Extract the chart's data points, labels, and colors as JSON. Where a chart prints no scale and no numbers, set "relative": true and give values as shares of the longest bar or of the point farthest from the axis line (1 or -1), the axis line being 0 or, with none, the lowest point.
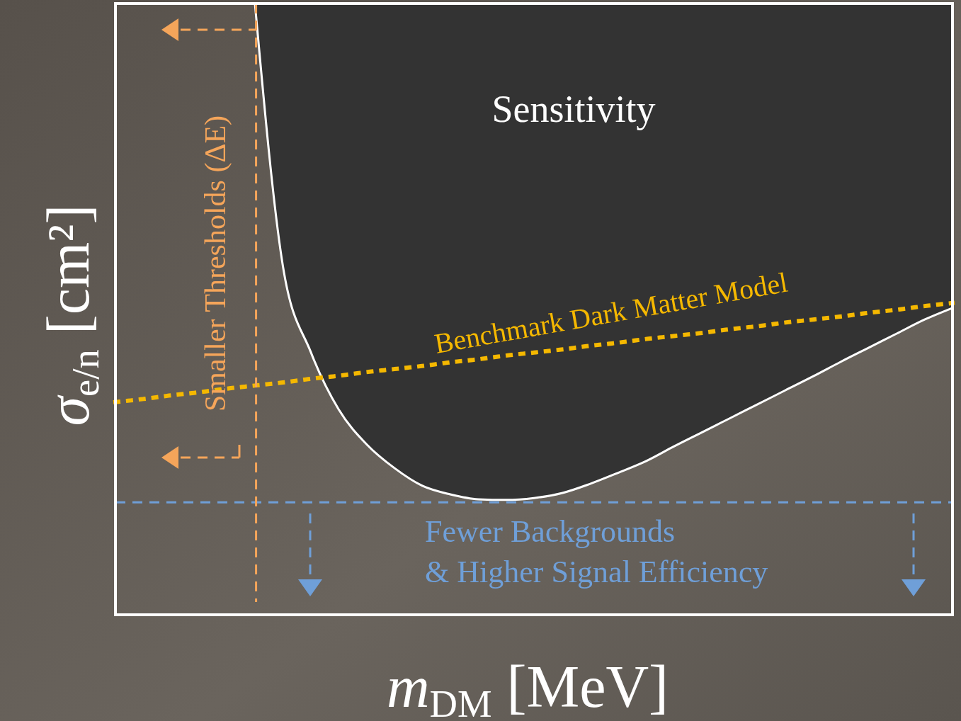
{
  "chart_data": {
    "type": "line",
    "relative": true,
    "xlabel": "m$_{DM}$ [MeV]",
    "ylabel": "σ$_{e/n}$ [cm²]",
    "categories": [
      null,
      null,
      null,
      null,
      null,
      null,
      null,
      null,
      null,
      null,
      null,
      null,
      null,
      null,
      null,
      null,
      null,
      null,
      null,
      null,
      null,
      null,
      null,
      null,
      null,
      null,
      null,
      null,
      null,
      null,
      null
    ],
    "series": [
      {
        "color": "#ffffff",
        "line_style": "solid",
        "values": [
          null,
          null,
          null,
          null,
          null,
          1.0,
          0.571,
          0.43,
          0.336,
          0.279,
          0.24,
          0.211,
          0.197,
          0.189,
          0.188,
          0.191,
          0.199,
          0.214,
          0.232,
          0.251,
          0.275,
          0.298,
          0.321,
          0.344,
          0.367,
          0.39,
          0.414,
          0.437,
          0.46,
          0.483,
          0.502
        ]
      },
      {
        "name": "Benchmark Dark Matter Model",
        "color": "#f5b800",
        "line_style": "dotted",
        "values": [
          0.348,
          0.353,
          0.359,
          0.364,
          0.37,
          0.375,
          0.38,
          0.386,
          0.391,
          0.397,
          0.402,
          0.407,
          0.413,
          0.418,
          0.424,
          0.429,
          0.434,
          0.44,
          0.445,
          0.451,
          0.456,
          0.461,
          0.467,
          0.472,
          0.478,
          0.483,
          0.488,
          0.494,
          0.499,
          0.505,
          0.51
        ]
      }
    ],
    "ref_lines": [
      {
        "axis": "y",
        "value": 0.184,
        "color": "#6f9fd8",
        "line_style": "dashed"
      }
    ],
    "annotations": [
      "Sensitivity",
      "Smaller Thresholds (ΔE)",
      "Fewer Backgrounds & Higher Signal Efficiency"
    ],
    "legend": false
  }
}
